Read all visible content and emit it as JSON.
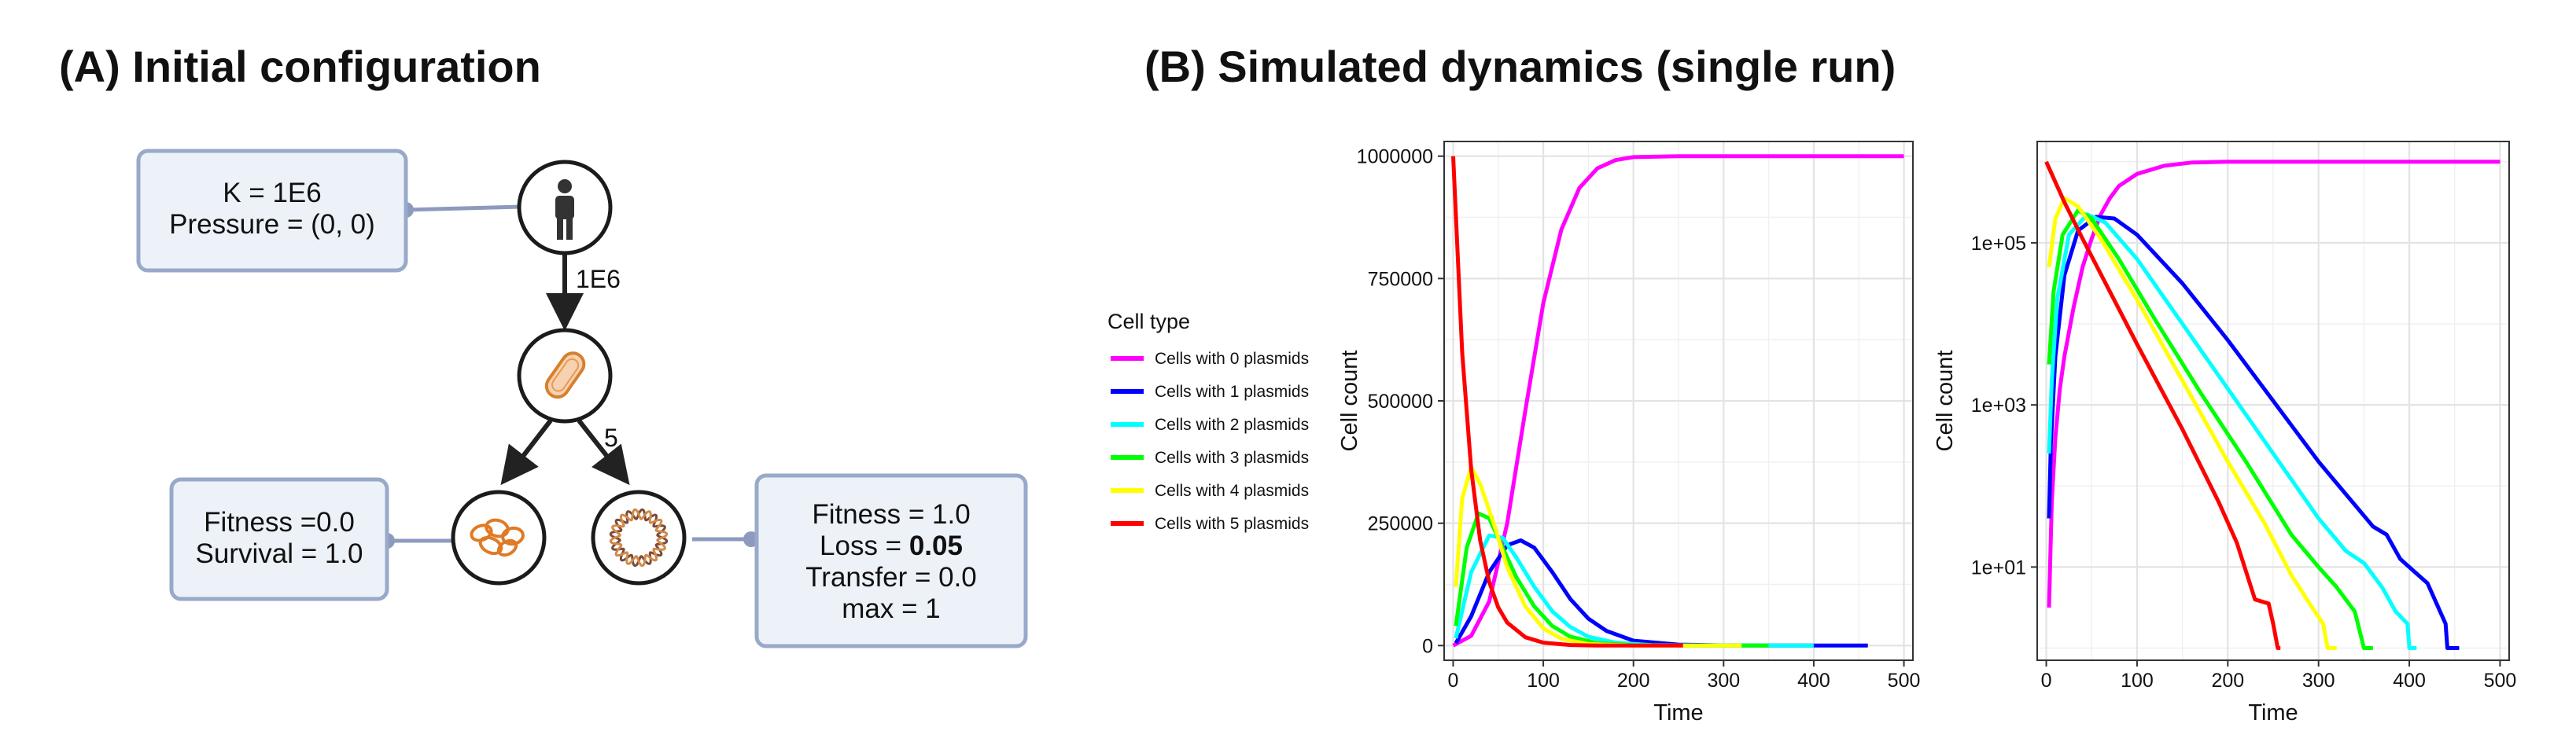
{
  "panel_a": {
    "title": "(A) Initial configuration",
    "env_box": [
      "K = 1E6",
      "Pressure = (0, 0)"
    ],
    "edge_host": "1E6",
    "edge_split": "5",
    "left_box": [
      "Fitness =0.0",
      "Survival = 1.0"
    ],
    "right_box": {
      "line1": "Fitness = 1.0",
      "line2_prefix": "Loss = ",
      "line2_bold": "0.05",
      "line3": "Transfer = 0.0",
      "line4": "max = 1"
    },
    "icons": [
      "person-icon",
      "bacterium-icon",
      "plasmid-cluster-icon",
      "plasmid-ring-icon"
    ]
  },
  "panel_b": {
    "title": "(B) Simulated dynamics (single run)",
    "legend": {
      "title": "Cell type",
      "items": [
        {
          "label": "Cells with 0 plasmids",
          "color": "#ff00ff"
        },
        {
          "label": "Cells with 1 plasmids",
          "color": "#0000ff"
        },
        {
          "label": "Cells with 2 plasmids",
          "color": "#00ffff"
        },
        {
          "label": "Cells with 3 plasmids",
          "color": "#00ff00"
        },
        {
          "label": "Cells with 4 plasmids",
          "color": "#ffff00"
        },
        {
          "label": "Cells with 5 plasmids",
          "color": "#ff0000"
        }
      ]
    }
  },
  "chart_data": [
    {
      "type": "line",
      "xlabel": "Time",
      "ylabel": "Cell count",
      "xlim": [
        -10,
        510
      ],
      "ylim": [
        -30000,
        1030000
      ],
      "x_ticks": [
        0,
        100,
        200,
        300,
        400,
        500
      ],
      "y_ticks": [
        0,
        250000,
        500000,
        750000,
        1000000
      ],
      "y_tick_labels": [
        "0",
        "250000",
        "500000",
        "750000",
        "1000000"
      ],
      "grid": true,
      "series": [
        {
          "name": "Cells with 0 plasmids",
          "color": "#ff00ff",
          "points": [
            [
              0,
              0
            ],
            [
              20,
              20000
            ],
            [
              40,
              90000
            ],
            [
              60,
              250000
            ],
            [
              80,
              480000
            ],
            [
              100,
              700000
            ],
            [
              120,
              850000
            ],
            [
              140,
              935000
            ],
            [
              160,
              975000
            ],
            [
              180,
              992000
            ],
            [
              200,
              998000
            ],
            [
              250,
              1000000
            ],
            [
              300,
              1000000
            ],
            [
              400,
              1000000
            ],
            [
              500,
              1000000
            ]
          ]
        },
        {
          "name": "Cells with 1 plasmids",
          "color": "#0000ff",
          "points": [
            [
              3,
              5000
            ],
            [
              20,
              60000
            ],
            [
              40,
              150000
            ],
            [
              60,
              205000
            ],
            [
              75,
              215000
            ],
            [
              90,
              200000
            ],
            [
              110,
              150000
            ],
            [
              130,
              95000
            ],
            [
              150,
              55000
            ],
            [
              170,
              30000
            ],
            [
              200,
              10000
            ],
            [
              250,
              2000
            ],
            [
              300,
              300
            ],
            [
              350,
              50
            ],
            [
              400,
              10
            ],
            [
              460,
              0
            ]
          ]
        },
        {
          "name": "Cells with 2 plasmids",
          "color": "#00ffff",
          "points": [
            [
              3,
              15000
            ],
            [
              20,
              150000
            ],
            [
              40,
              225000
            ],
            [
              55,
              220000
            ],
            [
              70,
              180000
            ],
            [
              90,
              120000
            ],
            [
              110,
              70000
            ],
            [
              130,
              38000
            ],
            [
              150,
              18000
            ],
            [
              180,
              6000
            ],
            [
              220,
              1000
            ],
            [
              280,
              100
            ],
            [
              340,
              10
            ],
            [
              400,
              0
            ]
          ]
        },
        {
          "name": "Cells with 3 plasmids",
          "color": "#00ff00",
          "points": [
            [
              3,
              40000
            ],
            [
              15,
              200000
            ],
            [
              28,
              270000
            ],
            [
              40,
              260000
            ],
            [
              55,
              200000
            ],
            [
              70,
              140000
            ],
            [
              90,
              80000
            ],
            [
              110,
              40000
            ],
            [
              130,
              18000
            ],
            [
              160,
              5000
            ],
            [
              200,
              800
            ],
            [
              260,
              50
            ],
            [
              300,
              5
            ],
            [
              350,
              0
            ]
          ]
        },
        {
          "name": "Cells with 4 plasmids",
          "color": "#ffff00",
          "points": [
            [
              3,
              120000
            ],
            [
              10,
              300000
            ],
            [
              20,
              365000
            ],
            [
              30,
              330000
            ],
            [
              45,
              250000
            ],
            [
              60,
              160000
            ],
            [
              80,
              80000
            ],
            [
              100,
              35000
            ],
            [
              120,
              14000
            ],
            [
              150,
              3000
            ],
            [
              200,
              200
            ],
            [
              250,
              10
            ],
            [
              320,
              0
            ]
          ]
        },
        {
          "name": "Cells with 5 plasmids",
          "color": "#ff0000",
          "points": [
            [
              0,
              1000000
            ],
            [
              10,
              600000
            ],
            [
              20,
              360000
            ],
            [
              30,
              215000
            ],
            [
              40,
              130000
            ],
            [
              50,
              78000
            ],
            [
              60,
              47000
            ],
            [
              80,
              17000
            ],
            [
              100,
              6000
            ],
            [
              130,
              1200
            ],
            [
              160,
              250
            ],
            [
              200,
              30
            ],
            [
              255,
              0
            ]
          ]
        }
      ]
    },
    {
      "type": "line",
      "xlabel": "Time",
      "ylabel": "Cell count",
      "log_y": true,
      "xlim": [
        -10,
        510
      ],
      "ylim_log10": [
        -0.15,
        6.25
      ],
      "x_ticks": [
        0,
        100,
        200,
        300,
        400,
        500
      ],
      "y_ticks_log10": [
        1,
        3,
        5
      ],
      "y_tick_labels": [
        "1e+01",
        "1e+03",
        "1e+05"
      ],
      "grid": true,
      "series": [
        {
          "name": "Cells with 0 plasmids",
          "color": "#ff00ff",
          "points_log10": [
            [
              3,
              0.5
            ],
            [
              6,
              1.8
            ],
            [
              10,
              2.6
            ],
            [
              15,
              3.2
            ],
            [
              20,
              3.6
            ],
            [
              30,
              4.2
            ],
            [
              40,
              4.7
            ],
            [
              50,
              5.05
            ],
            [
              60,
              5.35
            ],
            [
              70,
              5.55
            ],
            [
              80,
              5.7
            ],
            [
              100,
              5.85
            ],
            [
              130,
              5.95
            ],
            [
              160,
              5.99
            ],
            [
              200,
              6.0
            ],
            [
              500,
              6.0
            ]
          ]
        },
        {
          "name": "Cells with 1 plasmids",
          "color": "#0000ff",
          "points_log10": [
            [
              3,
              1.6
            ],
            [
              5,
              2.5
            ],
            [
              10,
              3.6
            ],
            [
              20,
              4.6
            ],
            [
              35,
              5.15
            ],
            [
              55,
              5.32
            ],
            [
              75,
              5.3
            ],
            [
              100,
              5.1
            ],
            [
              150,
              4.5
            ],
            [
              200,
              3.8
            ],
            [
              250,
              3.05
            ],
            [
              300,
              2.3
            ],
            [
              330,
              1.9
            ],
            [
              360,
              1.5
            ],
            [
              375,
              1.4
            ],
            [
              390,
              1.1
            ],
            [
              405,
              0.95
            ],
            [
              420,
              0.8
            ],
            [
              430,
              0.55
            ],
            [
              440,
              0.3
            ],
            [
              442,
              0
            ],
            [
              455,
              0
            ]
          ]
        },
        {
          "name": "Cells with 2 plasmids",
          "color": "#00ffff",
          "points_log10": [
            [
              3,
              2.4
            ],
            [
              6,
              3.3
            ],
            [
              12,
              4.3
            ],
            [
              25,
              5.1
            ],
            [
              45,
              5.35
            ],
            [
              65,
              5.25
            ],
            [
              100,
              4.8
            ],
            [
              150,
              4.0
            ],
            [
              200,
              3.2
            ],
            [
              250,
              2.4
            ],
            [
              300,
              1.6
            ],
            [
              330,
              1.2
            ],
            [
              350,
              1.05
            ],
            [
              370,
              0.75
            ],
            [
              385,
              0.45
            ],
            [
              398,
              0.3
            ],
            [
              400,
              0
            ],
            [
              408,
              0
            ]
          ]
        },
        {
          "name": "Cells with 3 plasmids",
          "color": "#00ff00",
          "points_log10": [
            [
              3,
              3.5
            ],
            [
              8,
              4.4
            ],
            [
              18,
              5.1
            ],
            [
              35,
              5.4
            ],
            [
              50,
              5.3
            ],
            [
              80,
              4.8
            ],
            [
              120,
              4.05
            ],
            [
              170,
              3.15
            ],
            [
              220,
              2.3
            ],
            [
              270,
              1.4
            ],
            [
              300,
              1.0
            ],
            [
              320,
              0.75
            ],
            [
              340,
              0.45
            ],
            [
              350,
              0
            ],
            [
              360,
              0
            ]
          ]
        },
        {
          "name": "Cells with 4 plasmids",
          "color": "#ffff00",
          "points_log10": [
            [
              3,
              4.7
            ],
            [
              10,
              5.3
            ],
            [
              20,
              5.55
            ],
            [
              35,
              5.45
            ],
            [
              60,
              5.05
            ],
            [
              100,
              4.3
            ],
            [
              150,
              3.3
            ],
            [
              200,
              2.3
            ],
            [
              240,
              1.55
            ],
            [
              270,
              0.9
            ],
            [
              290,
              0.55
            ],
            [
              305,
              0.3
            ],
            [
              310,
              0
            ],
            [
              320,
              0
            ]
          ]
        },
        {
          "name": "Cells with 5 plasmids",
          "color": "#ff0000",
          "points_log10": [
            [
              0,
              6.0
            ],
            [
              20,
              5.5
            ],
            [
              40,
              5.05
            ],
            [
              70,
              4.4
            ],
            [
              100,
              3.75
            ],
            [
              150,
              2.7
            ],
            [
              190,
              1.8
            ],
            [
              210,
              1.3
            ],
            [
              230,
              0.6
            ],
            [
              245,
              0.55
            ],
            [
              250,
              0.3
            ],
            [
              255,
              0
            ],
            [
              258,
              0
            ]
          ]
        }
      ]
    }
  ]
}
